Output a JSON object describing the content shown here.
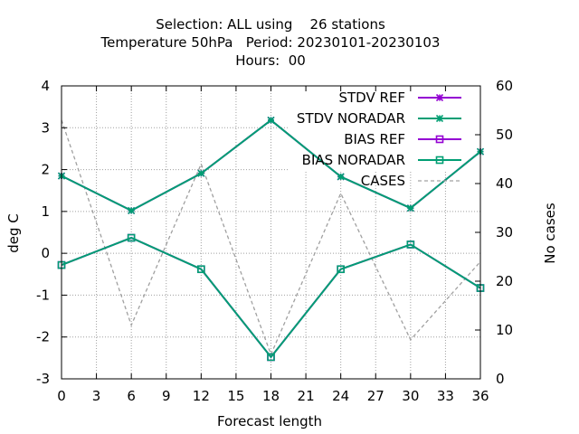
{
  "chart_data": {
    "type": "line",
    "title_lines": [
      "Selection: ALL using    26 stations",
      "Temperature 50hPa   Period: 20230101-20230103",
      "Hours:  00"
    ],
    "xlabel": "Forecast length",
    "ylabel": "deg C",
    "y2label": "No cases",
    "xlim": [
      0,
      36
    ],
    "ylim": [
      -3,
      4
    ],
    "y2lim": [
      0,
      60
    ],
    "xticks": [
      "0",
      "3",
      "6",
      "9",
      "12",
      "15",
      "18",
      "21",
      "24",
      "27",
      "30",
      "33",
      "36"
    ],
    "yticks": [
      "-3",
      "-2",
      "-1",
      "0",
      "1",
      "2",
      "3",
      "4"
    ],
    "y2ticks": [
      "0",
      "10",
      "20",
      "30",
      "40",
      "50",
      "60"
    ],
    "grid": true,
    "legend_position": "top-right",
    "x": [
      0,
      6,
      12,
      18,
      24,
      30,
      36
    ],
    "series": [
      {
        "name": "STDV REF",
        "axis": "y1",
        "color": "#9400d3",
        "marker": "star",
        "dash": "solid",
        "values": [
          1.85,
          1.02,
          1.91,
          3.18,
          1.83,
          1.08,
          2.43
        ]
      },
      {
        "name": "STDV NORADAR",
        "axis": "y1",
        "color": "#009e73",
        "marker": "star",
        "dash": "solid",
        "values": [
          1.85,
          1.02,
          1.91,
          3.18,
          1.83,
          1.08,
          2.43
        ]
      },
      {
        "name": "BIAS REF",
        "axis": "y1",
        "color": "#9400d3",
        "marker": "square",
        "dash": "solid",
        "values": [
          -0.28,
          0.37,
          -0.38,
          -2.48,
          -0.38,
          0.21,
          -0.83
        ]
      },
      {
        "name": "BIAS NORADAR",
        "axis": "y1",
        "color": "#009e73",
        "marker": "square",
        "dash": "solid",
        "values": [
          -0.28,
          0.37,
          -0.38,
          -2.48,
          -0.38,
          0.21,
          -0.83
        ]
      },
      {
        "name": "CASES",
        "axis": "y2",
        "color": "#a0a0a0",
        "marker": "none",
        "dash": "dashed",
        "values": [
          53,
          11,
          44,
          5,
          38,
          8,
          24
        ]
      }
    ]
  }
}
